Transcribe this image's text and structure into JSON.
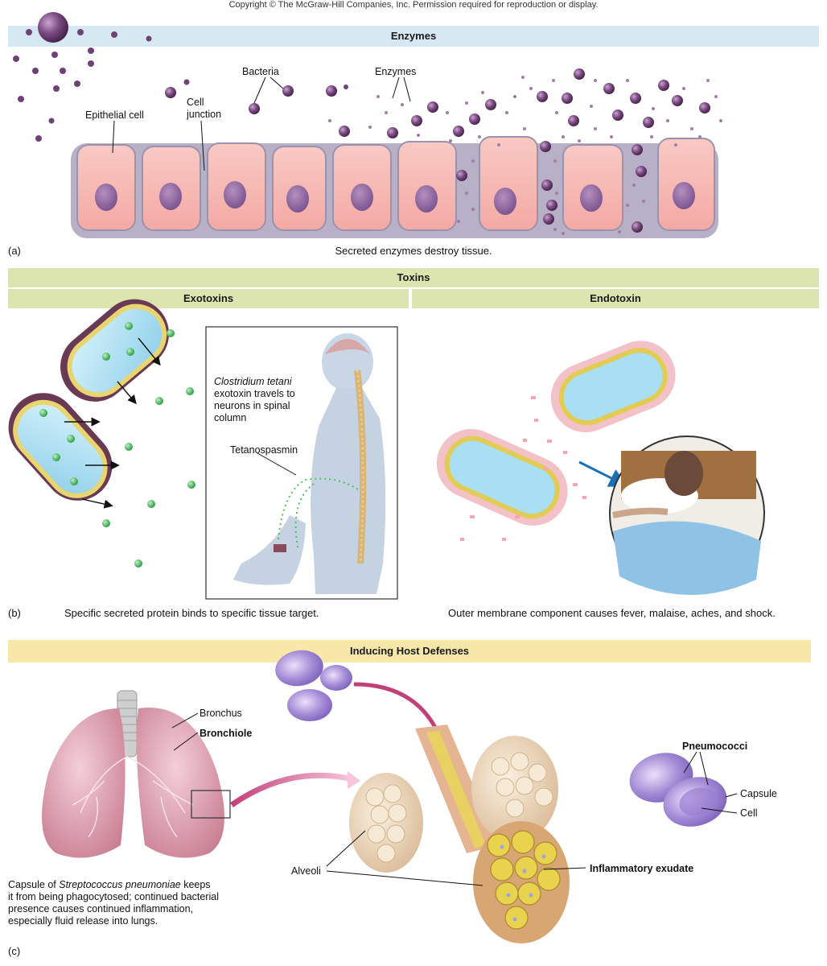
{
  "copyright": "Copyright © The McGraw-Hill Companies, Inc. Permission required for reproduction or display.",
  "panel_a": {
    "band_title": "Enzymes",
    "letter": "(a)",
    "caption": "Secreted enzymes destroy tissue.",
    "labels": {
      "bacteria": "Bacteria",
      "enzymes": "Enzymes",
      "epithelial_cell": "Epithelial cell",
      "cell_junction_1": "Cell",
      "cell_junction_2": "junction"
    }
  },
  "panel_b": {
    "band_title": "Toxins",
    "sub_left": "Exotoxins",
    "sub_right": "Endotoxin",
    "letter": "(b)",
    "caption_left": "Specific secreted protein binds to specific tissue target.",
    "caption_right": "Outer membrane component causes fever, malaise, aches, and shock.",
    "inset": {
      "species": "Clostridium tetani",
      "line1": "exotoxin travels to",
      "line2": "neurons in spinal",
      "line3": "column",
      "toxin": "Tetanospasmin"
    }
  },
  "panel_c": {
    "band_title": "Inducing Host Defenses",
    "letter": "(c)",
    "labels": {
      "bronchus": "Bronchus",
      "bronchiole": "Bronchiole",
      "alveoli": "Alveoli",
      "exudate": "Inflammatory exudate",
      "pneumococci": "Pneumococci",
      "capsule": "Capsule",
      "cell": "Cell"
    },
    "caption": {
      "pre": "Capsule of ",
      "species": "Streptococcus pneumoniae",
      "post": " keeps",
      "line2": "it from being phagocytosed; continued bacterial",
      "line3": "presence causes continued inflammation,",
      "line4": "especially fluid release into lungs."
    }
  },
  "colors": {
    "band_blue": "#d6e9f2",
    "band_green": "#dce5b0",
    "band_yellow": "#f7e7a8",
    "cell_pink": "#f7b3ae",
    "bacteria_purple": "#6b3a70",
    "toxin_green": "#4fbf5e",
    "bacterium_blue": "#a9dff2"
  }
}
